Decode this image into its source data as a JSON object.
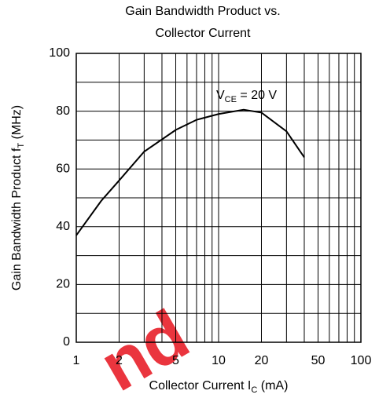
{
  "chart_data": {
    "type": "line",
    "title": [
      "Gain Bandwidth Product vs.",
      "Collector Current"
    ],
    "y_label": {
      "text": "Gain Bandwidth Product  f",
      "sub": "T",
      "tail": "  (MHz)"
    },
    "x_label": {
      "text": "Collector Current  I",
      "sub": "C",
      "tail": "  (mA)"
    },
    "annotation": {
      "text": "V",
      "sub": "CE",
      "tail": " = 20 V"
    },
    "watermark": "nd",
    "x_scale": "log",
    "xlim": [
      1,
      100
    ],
    "ylim": [
      0,
      100
    ],
    "xticks": [
      1,
      2,
      5,
      10,
      20,
      50,
      100
    ],
    "yticks": [
      0,
      20,
      40,
      60,
      80,
      100
    ],
    "xgrid": [
      1,
      2,
      3,
      4,
      5,
      6,
      7,
      8,
      9,
      10,
      20,
      30,
      40,
      50,
      60,
      70,
      80,
      90,
      100
    ],
    "ygrid": [
      0,
      10,
      20,
      30,
      40,
      50,
      60,
      70,
      80,
      90,
      100
    ],
    "grid": true,
    "color": "#000000",
    "x": [
      1,
      1.5,
      2,
      3,
      5,
      7,
      10,
      15,
      20,
      30,
      40
    ],
    "values": [
      37,
      49,
      56,
      66,
      73.5,
      77,
      79,
      80.5,
      79.5,
      73,
      64
    ]
  }
}
